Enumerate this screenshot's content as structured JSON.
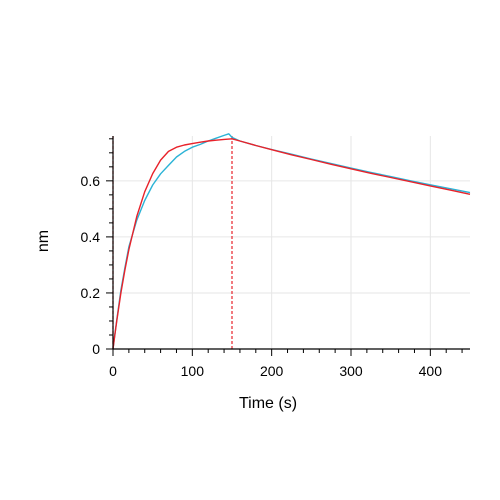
{
  "chart_data": {
    "type": "line",
    "xlabel": "Time (s)",
    "ylabel": "nm",
    "xlim": [
      0,
      450
    ],
    "ylim": [
      0,
      0.76
    ],
    "x_ticks": [
      0,
      100,
      200,
      300,
      400
    ],
    "x_tick_labels": [
      "0",
      "100",
      "200",
      "300",
      "400"
    ],
    "x_minor_step": 20,
    "y_ticks": [
      0,
      0.2,
      0.4,
      0.6
    ],
    "y_tick_labels": [
      "0",
      "0.2",
      "0.4",
      "0.6"
    ],
    "y_minor_step": 0.05,
    "grid": true,
    "legend": "none",
    "colors": {
      "measured": "#2bb3d6",
      "fit": "#e8222a",
      "marker": "#e8222a",
      "grid": "#e6e6e6",
      "axis": "#000000"
    },
    "series": [
      {
        "x": [
          0,
          2,
          5,
          10,
          15,
          20,
          30,
          40,
          50,
          60,
          70,
          80,
          90,
          100,
          110,
          120,
          130,
          140,
          146,
          150,
          160,
          180,
          200,
          225,
          250,
          275,
          300,
          325,
          350,
          375,
          400,
          425,
          450
        ],
        "y": [
          0,
          0.045,
          0.11,
          0.21,
          0.29,
          0.365,
          0.46,
          0.53,
          0.585,
          0.625,
          0.655,
          0.685,
          0.705,
          0.72,
          0.73,
          0.742,
          0.752,
          0.762,
          0.768,
          0.755,
          0.742,
          0.726,
          0.712,
          0.695,
          0.678,
          0.662,
          0.646,
          0.63,
          0.615,
          0.6,
          0.586,
          0.572,
          0.558
        ]
      },
      {
        "x": [
          0,
          2,
          5,
          10,
          15,
          20,
          30,
          40,
          50,
          60,
          70,
          80,
          90,
          100,
          110,
          120,
          130,
          140,
          150,
          160,
          180,
          200,
          225,
          250,
          275,
          300,
          325,
          350,
          375,
          400,
          425,
          450
        ],
        "y": [
          0,
          0.044,
          0.106,
          0.2,
          0.282,
          0.355,
          0.473,
          0.561,
          0.626,
          0.674,
          0.705,
          0.72,
          0.728,
          0.733,
          0.738,
          0.742,
          0.745,
          0.748,
          0.75,
          0.742,
          0.726,
          0.711,
          0.693,
          0.676,
          0.659,
          0.643,
          0.627,
          0.612,
          0.597,
          0.582,
          0.567,
          0.552
        ]
      }
    ],
    "vertical_markers": [
      0,
      150
    ]
  }
}
